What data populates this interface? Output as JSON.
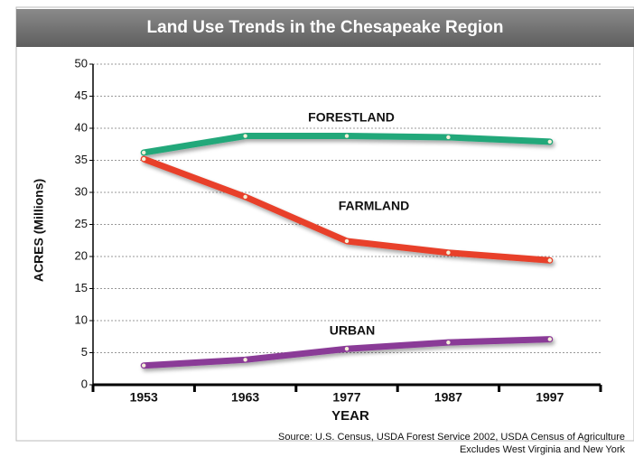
{
  "chart_data": {
    "type": "line",
    "title": "Land Use Trends in the Chesapeake Region",
    "xlabel": "YEAR",
    "ylabel": "ACRES (Millions)",
    "categories": [
      "1953",
      "1963",
      "1977",
      "1987",
      "1997"
    ],
    "series": [
      {
        "name": "FORESTLAND",
        "color": "#20a87a",
        "values": [
          36.2,
          38.8,
          38.8,
          38.6,
          37.9
        ]
      },
      {
        "name": "FARMLAND",
        "color": "#e8402a",
        "values": [
          35.2,
          29.3,
          22.4,
          20.6,
          19.4
        ]
      },
      {
        "name": "URBAN",
        "color": "#8a3a97",
        "values": [
          3.0,
          3.9,
          5.6,
          6.6,
          7.1
        ]
      }
    ],
    "ylim": [
      0,
      50
    ],
    "yticks": [
      0,
      5,
      10,
      15,
      20,
      25,
      30,
      35,
      40,
      45,
      50
    ],
    "grid": true,
    "annotations": [
      "Source:  U.S. Census, USDA Forest Service  2002, USDA Census of Agriculture",
      "Excludes West Virginia and New York"
    ]
  }
}
